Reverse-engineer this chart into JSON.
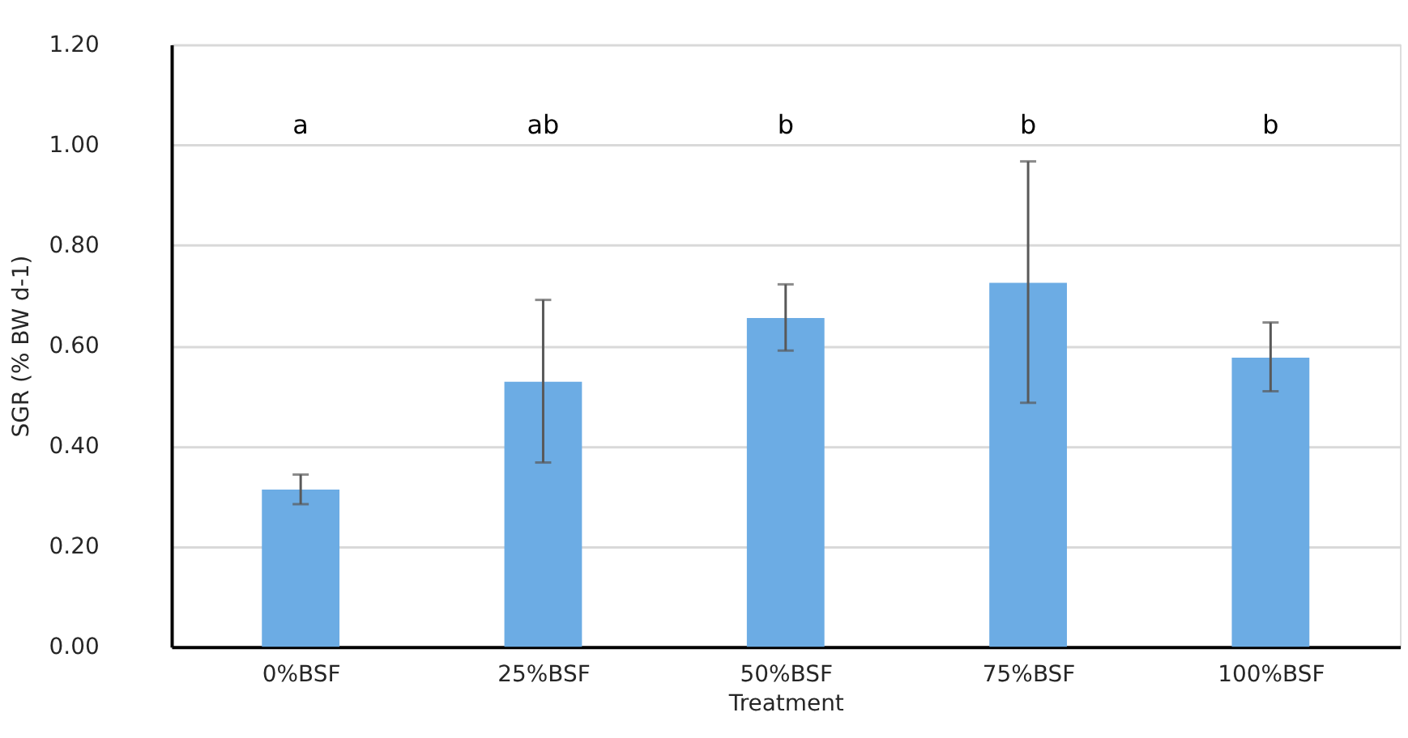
{
  "chart_data": {
    "type": "bar",
    "xlabel": "Treatment",
    "ylabel": "SGR (% BW d-1)",
    "categories": [
      "0%BSF",
      "25%BSF",
      "50%BSF",
      "75%BSF",
      "100%BSF"
    ],
    "values": [
      0.313,
      0.528,
      0.655,
      0.725,
      0.576
    ],
    "errors": [
      [
        0.284,
        0.343
      ],
      [
        0.367,
        0.691
      ],
      [
        0.59,
        0.722
      ],
      [
        0.486,
        0.967
      ],
      [
        0.509,
        0.646
      ]
    ],
    "color": "#6cace4",
    "ylim": [
      0,
      1.2
    ],
    "yticks": [
      {
        "value": 0,
        "label": "0.00"
      },
      {
        "value": 0.2,
        "label": "0.20"
      },
      {
        "value": 0.4,
        "label": "0.40"
      },
      {
        "value": 0.6,
        "label": "0.60"
      },
      {
        "value": 0.8,
        "label": "0.80"
      },
      {
        "value": 1.0,
        "label": "1.00"
      },
      {
        "value": 1.2,
        "label": "1.20"
      }
    ],
    "grid": "y",
    "annotations": [
      "a",
      "ab",
      "b",
      "b",
      "b"
    ]
  }
}
